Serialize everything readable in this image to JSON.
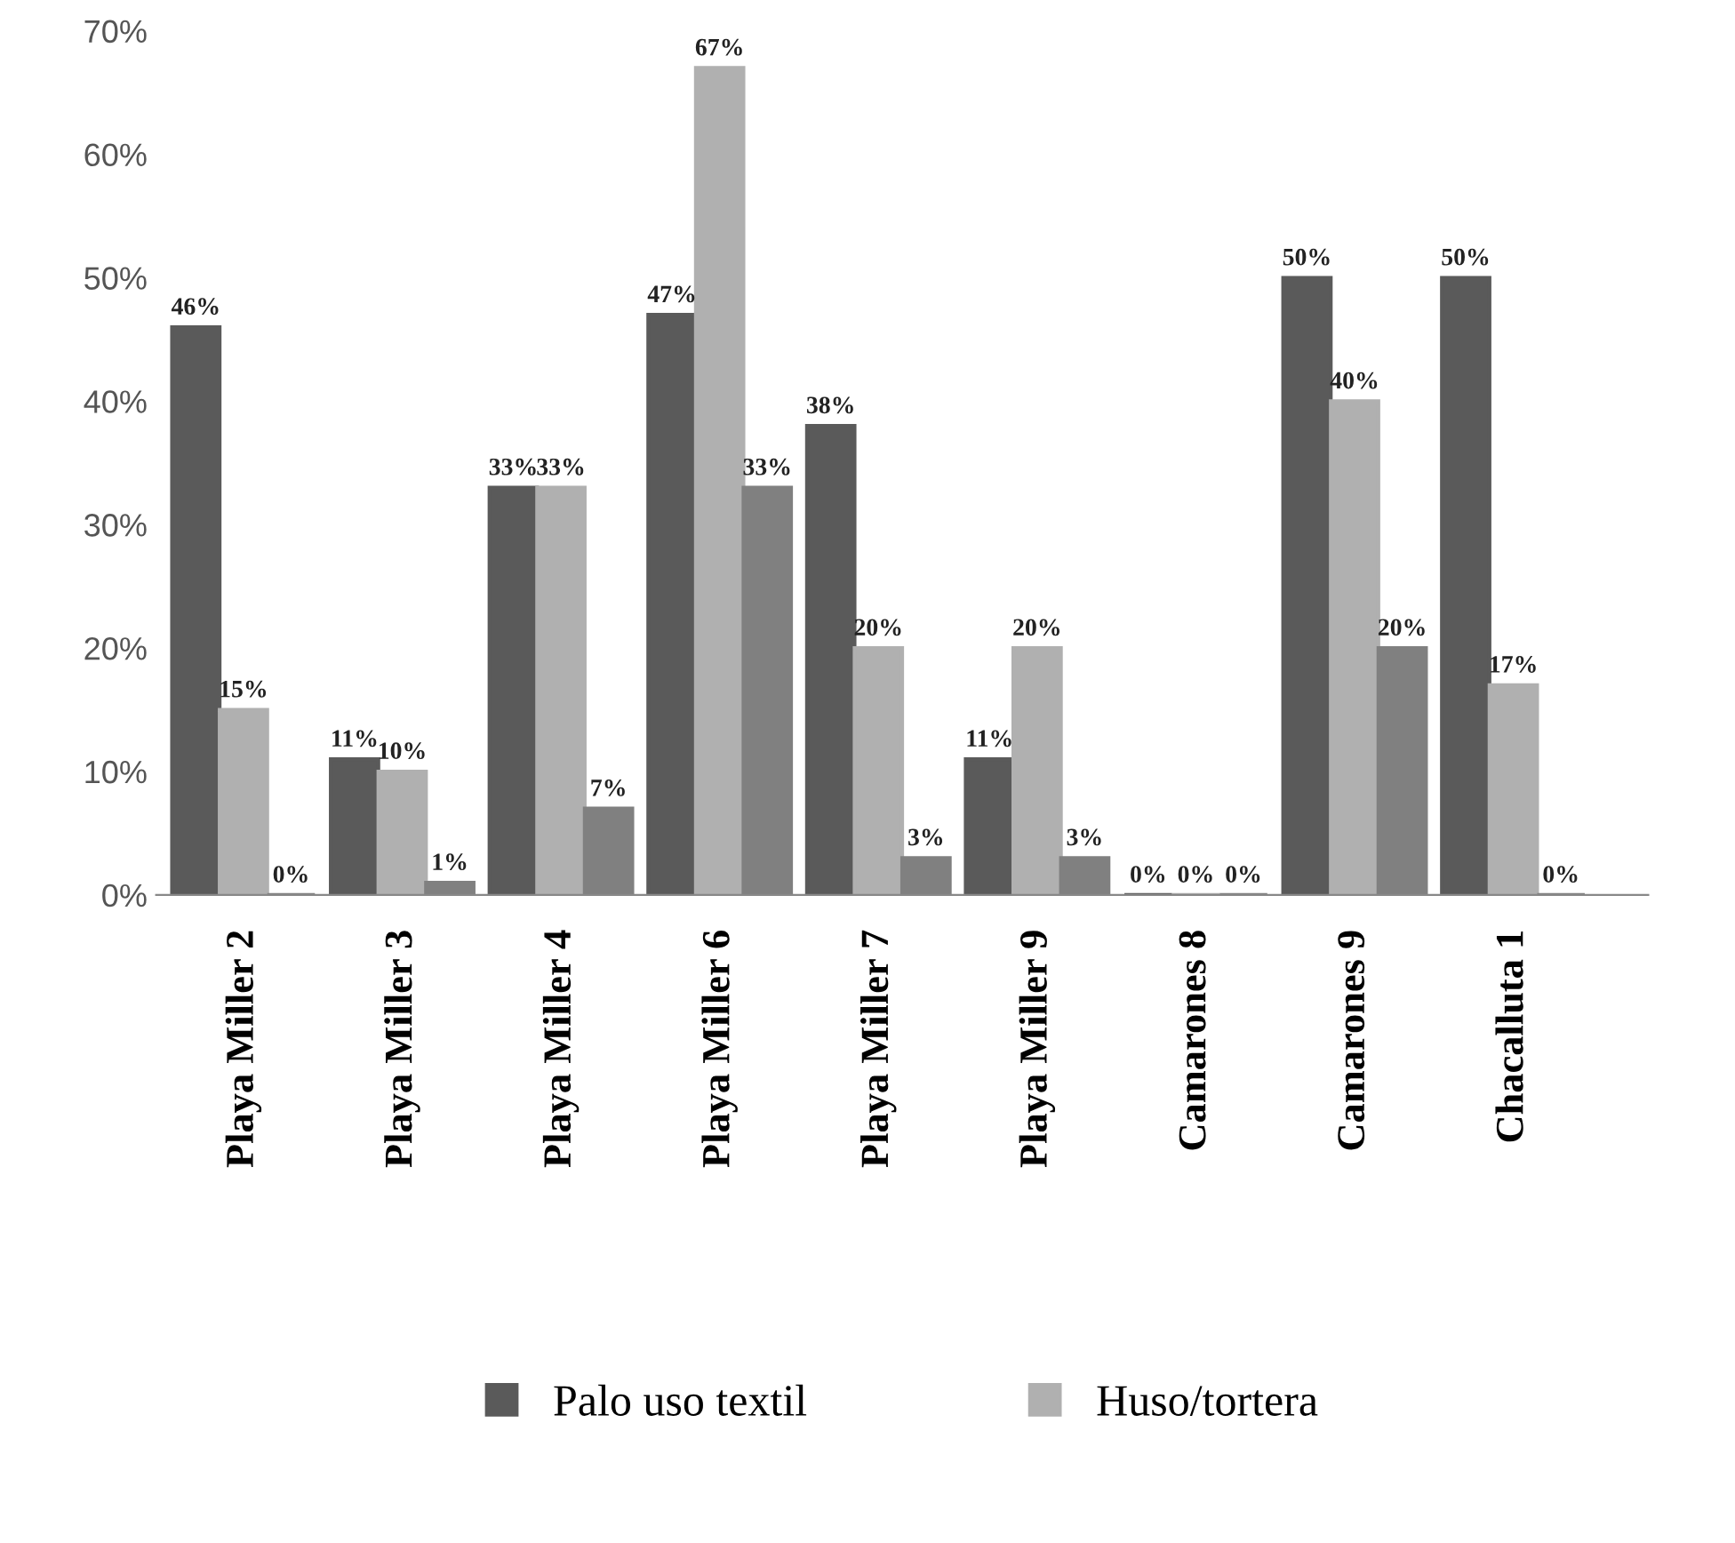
{
  "chart_data": {
    "type": "bar",
    "categories": [
      "Playa Miller 2",
      "Playa Miller 3",
      "Playa Miller 4",
      "Playa Miller 6",
      "Playa Miller 7",
      "Playa Miller 9",
      "Camarones 8",
      "Camarones 9",
      "Chacalluta 1"
    ],
    "series": [
      {
        "name": "Palo uso textil",
        "color": "#5a5a5a",
        "values": [
          46,
          11,
          33,
          47,
          38,
          11,
          0,
          50,
          50
        ],
        "value_labels": [
          "46%",
          "11%",
          "33%",
          "47%",
          "38%",
          "11%",
          "0%",
          "50%",
          "50%"
        ]
      },
      {
        "name": "Huso/tortera",
        "color": "#b0b0b0",
        "values": [
          15,
          10,
          33,
          67,
          20,
          20,
          0,
          40,
          17
        ],
        "value_labels": [
          "15%",
          "10%",
          "33%",
          "67%",
          "20%",
          "20%",
          "0%",
          "40%",
          "17%"
        ]
      },
      {
        "color": "#808080",
        "values": [
          0,
          1,
          7,
          33,
          3,
          3,
          0,
          20,
          0
        ],
        "value_labels": [
          "0%",
          "1%",
          "7%",
          "33%",
          "3%",
          "3%",
          "0%",
          "20%",
          "0%"
        ]
      }
    ],
    "ylim": [
      0,
      70
    ],
    "yticks": [
      {
        "value": 0,
        "label": "0%"
      },
      {
        "value": 10,
        "label": "10%"
      },
      {
        "value": 20,
        "label": "20%"
      },
      {
        "value": 30,
        "label": "30%"
      },
      {
        "value": 40,
        "label": "40%"
      },
      {
        "value": 50,
        "label": "50%"
      },
      {
        "value": 60,
        "label": "60%"
      },
      {
        "value": 70,
        "label": "70%"
      }
    ],
    "grid": false,
    "legend": "bottom"
  }
}
